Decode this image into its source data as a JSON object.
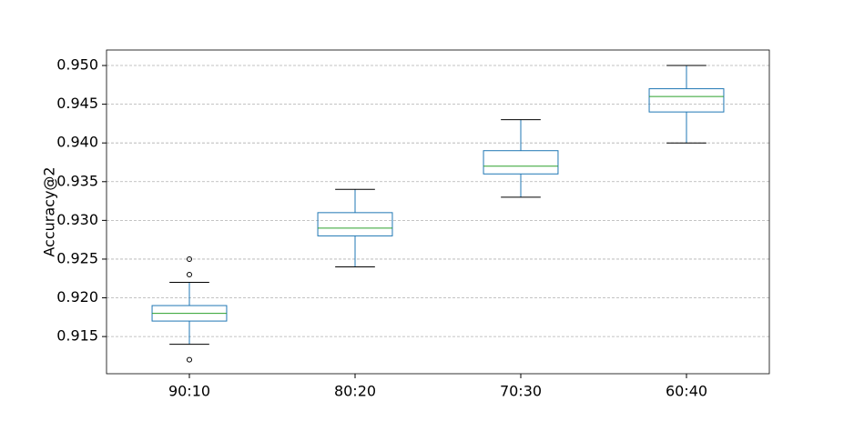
{
  "chart_data": {
    "type": "box",
    "ylabel": "Accuracy@2",
    "categories": [
      "90:10",
      "80:20",
      "70:30",
      "60:40"
    ],
    "boxes": [
      {
        "whislo": 0.914,
        "q1": 0.917,
        "med": 0.918,
        "q3": 0.919,
        "whishi": 0.922,
        "fliers": [
          0.925,
          0.923,
          0.912
        ]
      },
      {
        "whislo": 0.924,
        "q1": 0.928,
        "med": 0.929,
        "q3": 0.931,
        "whishi": 0.934,
        "fliers": []
      },
      {
        "whislo": 0.933,
        "q1": 0.936,
        "med": 0.937,
        "q3": 0.939,
        "whishi": 0.943,
        "fliers": []
      },
      {
        "whislo": 0.94,
        "q1": 0.944,
        "med": 0.946,
        "q3": 0.947,
        "whishi": 0.95,
        "fliers": []
      }
    ],
    "box_color": "#1f77b4",
    "median_color": "#2ca02c",
    "flier_color": "#000000",
    "ylim": [
      0.9102,
      0.952
    ],
    "yticks": [
      0.915,
      {
        "value": 0.92,
        "label": "0.920"
      },
      0.925,
      {
        "value": 0.93,
        "label": "0.930"
      },
      0.935,
      {
        "value": 0.94,
        "label": "0.940"
      },
      0.945,
      {
        "value": 0.95,
        "label": "0.950"
      }
    ],
    "grid": true
  }
}
